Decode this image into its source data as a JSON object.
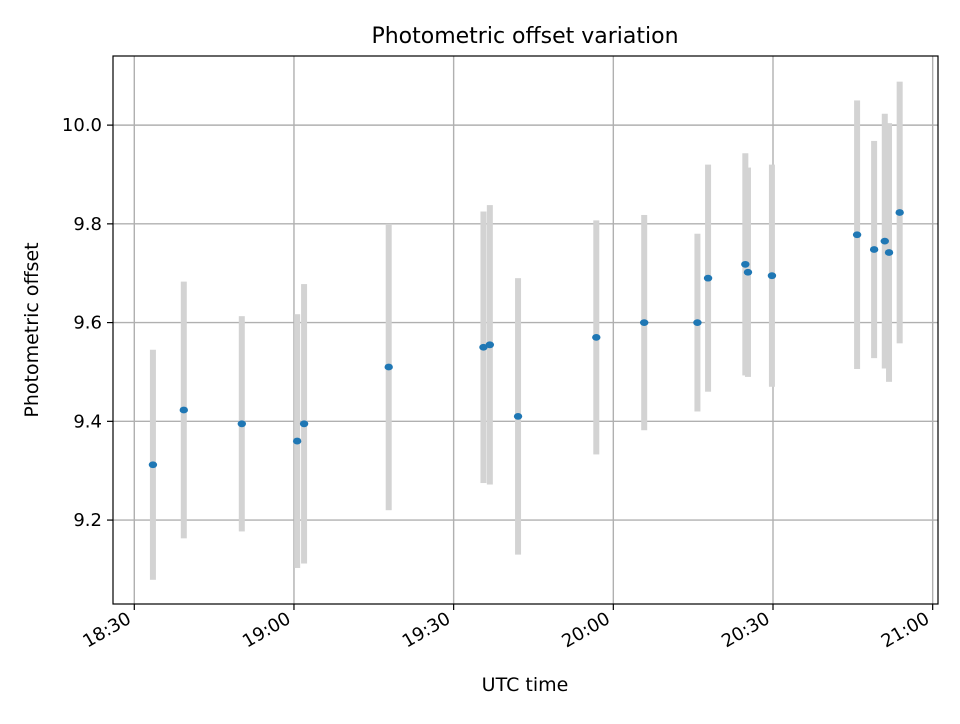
{
  "chart_data": {
    "type": "scatter",
    "title": "Photometric offset variation",
    "xlabel": "UTC time",
    "ylabel": "Photometric offset",
    "x_axis_kind": "time",
    "xlim": [
      "18:26",
      "21:01"
    ],
    "ylim": [
      9.03,
      10.14
    ],
    "x_ticks": [
      "18:30",
      "19:00",
      "19:30",
      "20:00",
      "20:30",
      "21:00"
    ],
    "y_ticks": [
      9.2,
      9.4,
      9.6,
      9.8,
      10.0
    ],
    "y_tick_labels": [
      "9.2",
      "9.4",
      "9.6",
      "9.8",
      "10.0"
    ],
    "grid": true,
    "errorbar_color": "#d3d3d3",
    "marker_color": "#1f77b4",
    "points": [
      {
        "x": "18:33.5",
        "y": 9.312,
        "err": 0.233
      },
      {
        "x": "18:39.3",
        "y": 9.423,
        "err": 0.26
      },
      {
        "x": "18:50.2",
        "y": 9.395,
        "err": 0.218
      },
      {
        "x": "19:00.6",
        "y": 9.36,
        "err": 0.257
      },
      {
        "x": "19:01.9",
        "y": 9.395,
        "err": 0.283
      },
      {
        "x": "19:17.8",
        "y": 9.51,
        "err": 0.29
      },
      {
        "x": "19:35.6",
        "y": 9.55,
        "err": 0.275
      },
      {
        "x": "19:36.8",
        "y": 9.555,
        "err": 0.283
      },
      {
        "x": "19:42.1",
        "y": 9.41,
        "err": 0.28
      },
      {
        "x": "19:56.8",
        "y": 9.57,
        "err": 0.237
      },
      {
        "x": "20:05.8",
        "y": 9.6,
        "err": 0.218
      },
      {
        "x": "20:15.8",
        "y": 9.6,
        "err": 0.18
      },
      {
        "x": "20:17.8",
        "y": 9.69,
        "err": 0.23
      },
      {
        "x": "20:24.8",
        "y": 9.718,
        "err": 0.225
      },
      {
        "x": "20:25.3",
        "y": 9.702,
        "err": 0.212
      },
      {
        "x": "20:29.8",
        "y": 9.695,
        "err": 0.225
      },
      {
        "x": "20:45.8",
        "y": 9.778,
        "err": 0.272
      },
      {
        "x": "20:49.0",
        "y": 9.748,
        "err": 0.22
      },
      {
        "x": "20:51.0",
        "y": 9.765,
        "err": 0.258
      },
      {
        "x": "20:51.8",
        "y": 9.742,
        "err": 0.262
      },
      {
        "x": "20:53.8",
        "y": 9.823,
        "err": 0.265
      }
    ]
  }
}
